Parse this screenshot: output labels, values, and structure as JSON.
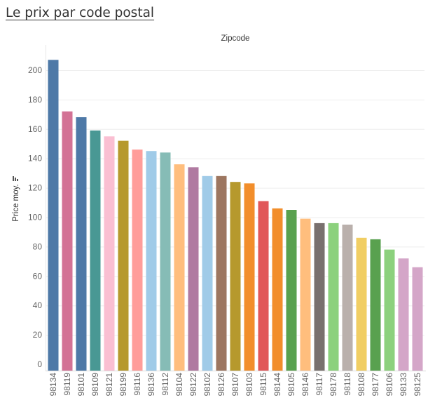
{
  "dashboard": {
    "title": "Le prix par code postal"
  },
  "chart_data": {
    "type": "bar",
    "title": "",
    "column_header": "Zipcode",
    "xlabel": "",
    "ylabel": "Price moy.",
    "ylim": [
      -5,
      210
    ],
    "yticks": [
      0,
      20,
      40,
      60,
      80,
      100,
      120,
      140,
      160,
      180,
      200
    ],
    "grid": true,
    "legend": "none",
    "sort_icon": "sort-descending-icon",
    "categories": [
      "98134",
      "98119",
      "98101",
      "98109",
      "98121",
      "98199",
      "98116",
      "98136",
      "98112",
      "98104",
      "98122",
      "98102",
      "98126",
      "98107",
      "98103",
      "98115",
      "98144",
      "98105",
      "98146",
      "98117",
      "98178",
      "98118",
      "98108",
      "98177",
      "98106",
      "98133",
      "98125"
    ],
    "values": [
      207,
      172,
      168,
      159,
      155,
      152,
      146,
      145,
      144,
      136,
      134,
      128,
      128,
      124,
      123,
      111,
      106,
      105,
      99,
      96,
      96,
      95,
      86,
      85,
      78,
      72,
      66
    ],
    "colors": [
      "#4E79A7",
      "#D37295",
      "#4E79A7",
      "#499894",
      "#FABFD2",
      "#B6992D",
      "#FF9D9A",
      "#A0CBE8",
      "#86BCB6",
      "#FFBE7D",
      "#B07AA1",
      "#A0CBE8",
      "#9D7660",
      "#B6992D",
      "#F28E2B",
      "#E15759",
      "#F28E2B",
      "#59A14F",
      "#FFBE7D",
      "#79706E",
      "#8CD17D",
      "#BAB0AC",
      "#F1CE63",
      "#59A14F",
      "#8CD17D",
      "#D4A6C8",
      "#D4A6C8"
    ]
  }
}
